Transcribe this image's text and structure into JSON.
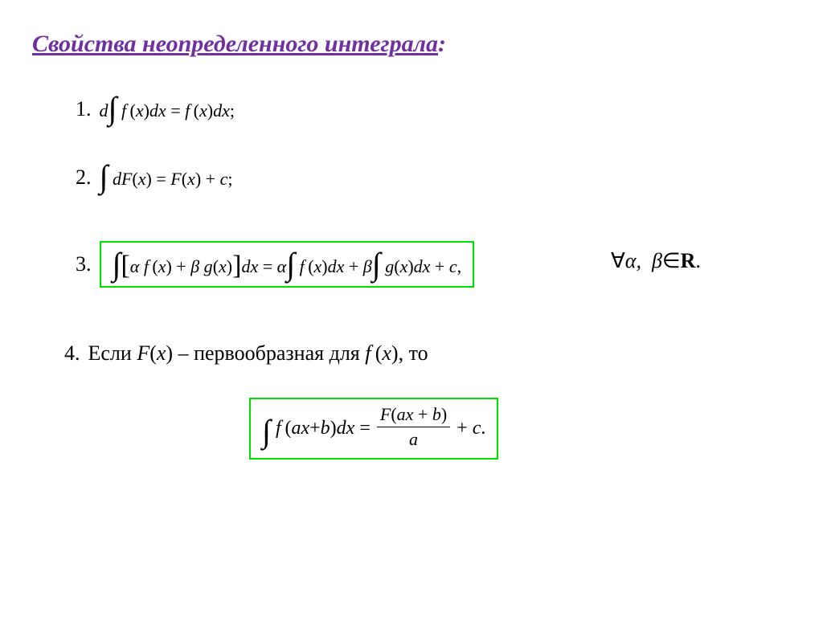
{
  "title": {
    "text_underlined": "Свойства неопределенного интеграла",
    "colon": ":",
    "color": "#7030a0",
    "fontsize": 30
  },
  "items": {
    "n1": "1.",
    "eq1": "d ∫ f (x)dx = f (x)dx ;",
    "n2": "2.",
    "eq2": "∫ dF(x) = F(x) + c ;",
    "n3": "3.",
    "eq3": "∫ [ α f (x) + β g(x) ] dx = α ∫ f (x)dx + β ∫ g(x)dx + c ,",
    "after3": "∀α,  β ∈ R.",
    "n4": "4.",
    "text4_a": " Если  ",
    "text4_fx": "F(x)",
    "text4_b": " – первообразная для  ",
    "text4_fx2": "f (x)",
    "text4_c": ",  то",
    "eq5_left": "∫ f (ax + b) dx = ",
    "eq5_frac_top": "F(ax + b)",
    "eq5_frac_bot": "a",
    "eq5_right": " + c ."
  },
  "style": {
    "box_border_color": "#00e000",
    "box_border_width": 2,
    "background": "#ffffff",
    "text_color": "#000000",
    "body_fontsize": 22,
    "num_fontsize": 26
  }
}
